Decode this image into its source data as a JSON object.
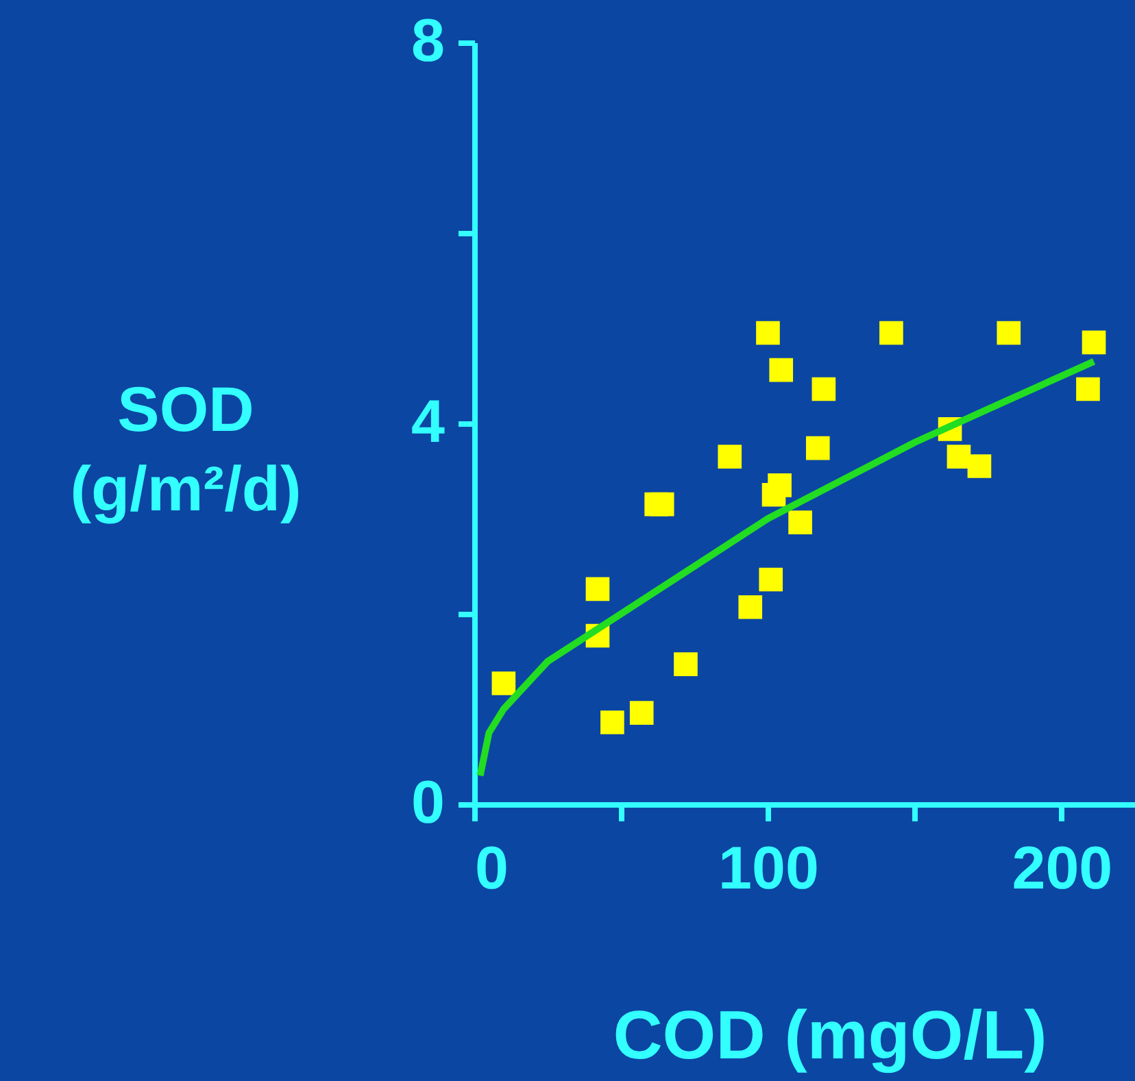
{
  "chart_data": {
    "type": "scatter",
    "xlabel": "COD (mgO/L)",
    "ylabel": "SOD (g/m²/d)",
    "xlim": [
      0,
      225
    ],
    "ylim": [
      0,
      8
    ],
    "xticks": [
      0,
      {
        "value": 50,
        "label": null
      },
      100,
      {
        "value": 150,
        "label": null
      },
      200
    ],
    "yticks": [
      0,
      {
        "value": 2,
        "label": null
      },
      4,
      {
        "value": 6,
        "label": null
      },
      8
    ],
    "series": [
      {
        "marker": "square",
        "color": "#ffff00",
        "x": [
          10,
          42,
          42,
          47,
          57,
          62,
          64,
          72,
          87,
          94,
          100,
          101,
          102,
          104,
          104.5,
          111,
          117,
          119,
          142,
          162,
          165,
          172,
          182,
          211,
          209
        ],
        "values": [
          1.27,
          2.26,
          1.77,
          0.86,
          0.96,
          3.15,
          3.15,
          1.47,
          3.65,
          2.07,
          4.95,
          2.36,
          3.25,
          3.35,
          4.56,
          2.96,
          3.74,
          4.36,
          4.95,
          3.94,
          3.65,
          3.55,
          4.95,
          4.85,
          4.36
        ]
      },
      {
        "type": "line",
        "marker": "none",
        "line_style": "solid",
        "color": "#22dd22",
        "x": [
          2,
          5,
          10,
          25,
          50,
          75,
          100,
          125,
          150,
          175,
          211
        ],
        "values": [
          0.3,
          0.75,
          1.0,
          1.5,
          2.0,
          2.5,
          3.0,
          3.4,
          3.8,
          4.15,
          4.65
        ]
      }
    ]
  }
}
